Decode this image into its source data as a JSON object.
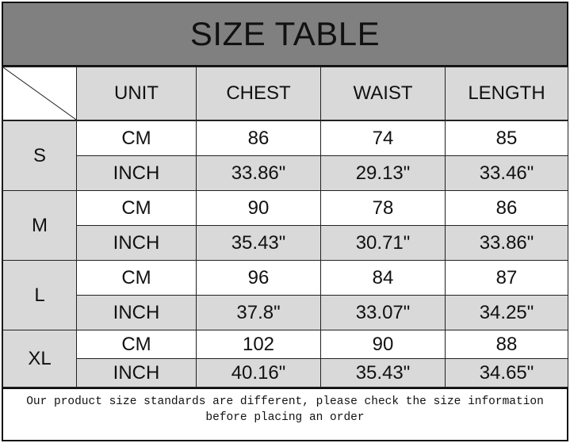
{
  "title": "SIZE TABLE",
  "headers": [
    "UNIT",
    "CHEST",
    "WAIST",
    "LENGTH"
  ],
  "rows": [
    {
      "size": "S",
      "cm": {
        "unit": "CM",
        "chest": "86",
        "waist": "74",
        "length": "85"
      },
      "inch": {
        "unit": "INCH",
        "chest": "33.86\"",
        "waist": "29.13\"",
        "length": "33.46\""
      }
    },
    {
      "size": "M",
      "cm": {
        "unit": "CM",
        "chest": "90",
        "waist": "78",
        "length": "86"
      },
      "inch": {
        "unit": "INCH",
        "chest": "35.43\"",
        "waist": "30.71\"",
        "length": "33.86\""
      }
    },
    {
      "size": "L",
      "cm": {
        "unit": "CM",
        "chest": "96",
        "waist": "84",
        "length": "87"
      },
      "inch": {
        "unit": "INCH",
        "chest": "37.8\"",
        "waist": "33.07\"",
        "length": "34.25\""
      }
    },
    {
      "size": "XL",
      "cm": {
        "unit": "CM",
        "chest": "102",
        "waist": "90",
        "length": "88"
      },
      "inch": {
        "unit": "INCH",
        "chest": "40.16\"",
        "waist": "35.43\"",
        "length": "34.65\""
      }
    }
  ],
  "note_line1": "Our product size standards are different, please check the size information",
  "note_line2": "before placing an order",
  "colors": {
    "title_bg": "#808080",
    "cell_gray": "#d9d9d9",
    "cell_white": "#ffffff"
  }
}
